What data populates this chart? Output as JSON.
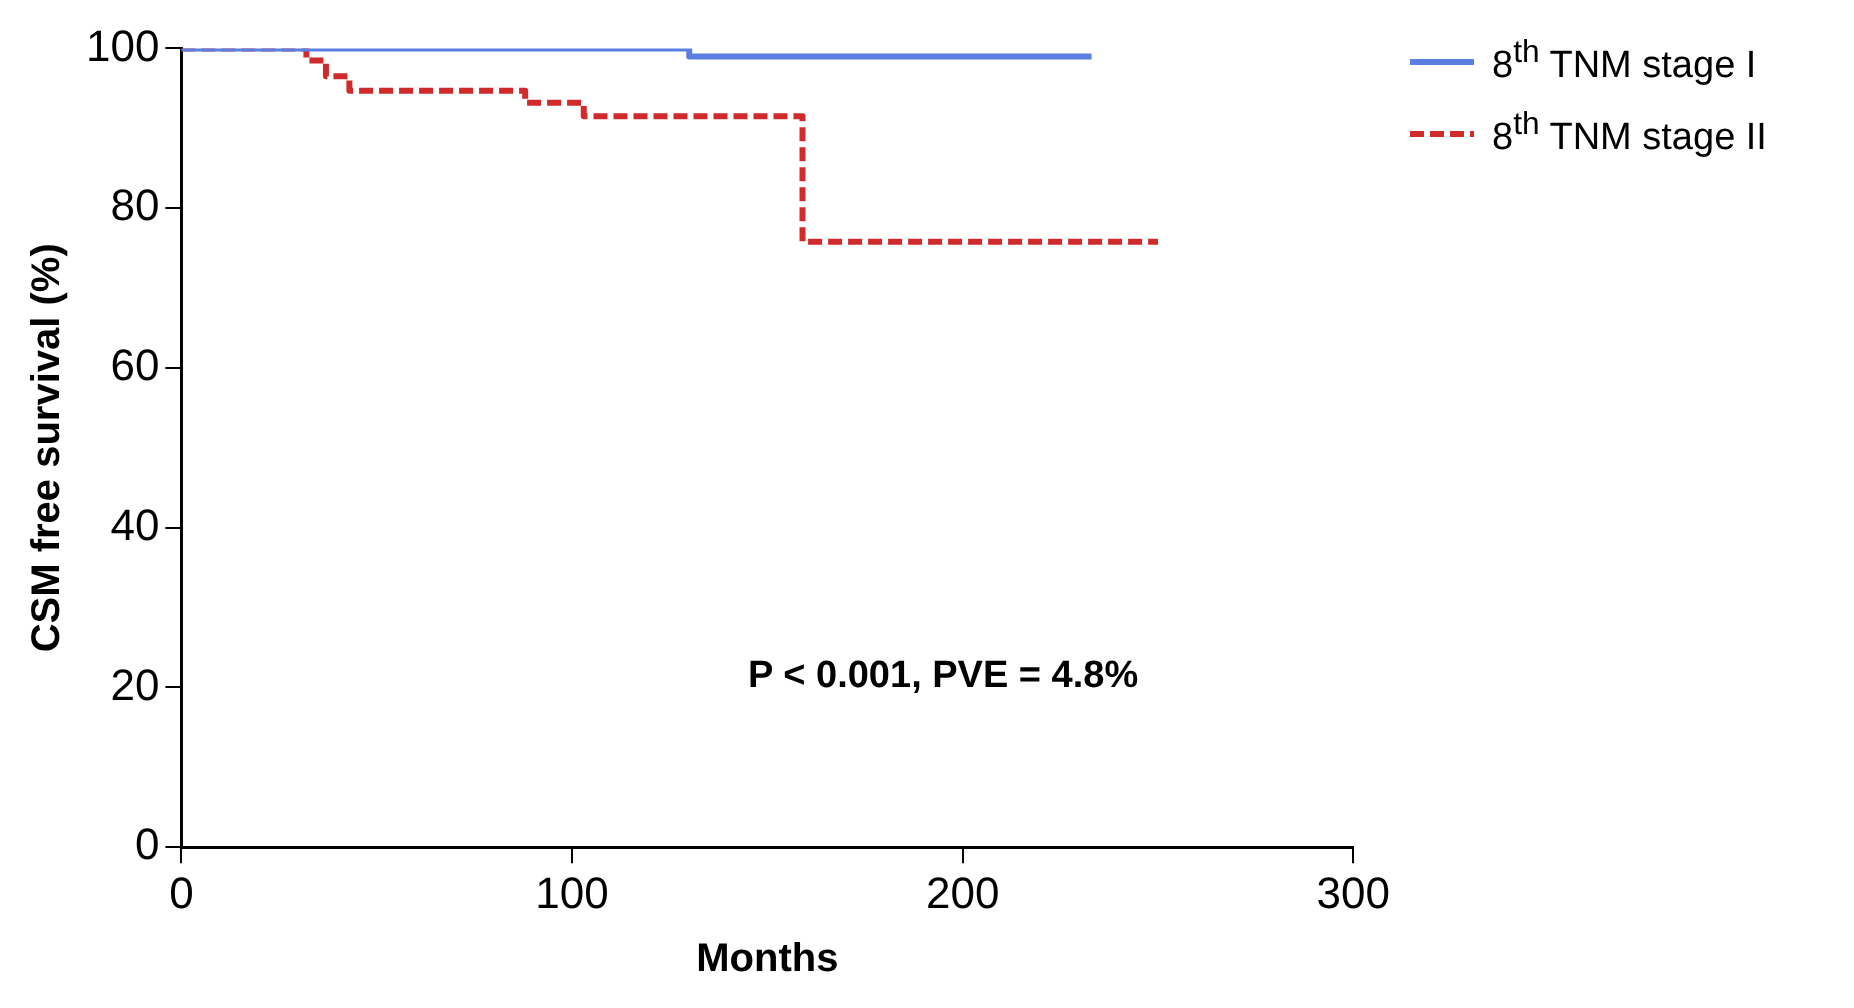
{
  "chart_data": {
    "type": "step",
    "xlabel": "Months",
    "ylabel": "CSM free survival (%)",
    "xlim": [
      0,
      300
    ],
    "xticks": [
      0,
      100,
      200,
      300
    ],
    "ylim": [
      0,
      100
    ],
    "yticks": [
      0,
      20,
      40,
      60,
      80,
      100
    ],
    "grid": false,
    "legend": "top right",
    "annotations": [
      "P < 0.001, PVE = 4.8%"
    ],
    "series": [
      {
        "name": "8$^{th}$ TNM stage I",
        "color": "#5b7fe0",
        "line_style": "solid",
        "x": [
          0,
          130,
          233
        ],
        "values": [
          100,
          99,
          99
        ]
      },
      {
        "name": "8$^{th}$ TNM stage II",
        "color": "#d02a2a",
        "line_style": "dashed",
        "x": [
          0,
          32,
          37,
          43,
          88,
          103,
          159,
          250
        ],
        "values": [
          100,
          98.5,
          96.5,
          94.7,
          93.2,
          91.5,
          75.8,
          75.8
        ]
      }
    ]
  }
}
